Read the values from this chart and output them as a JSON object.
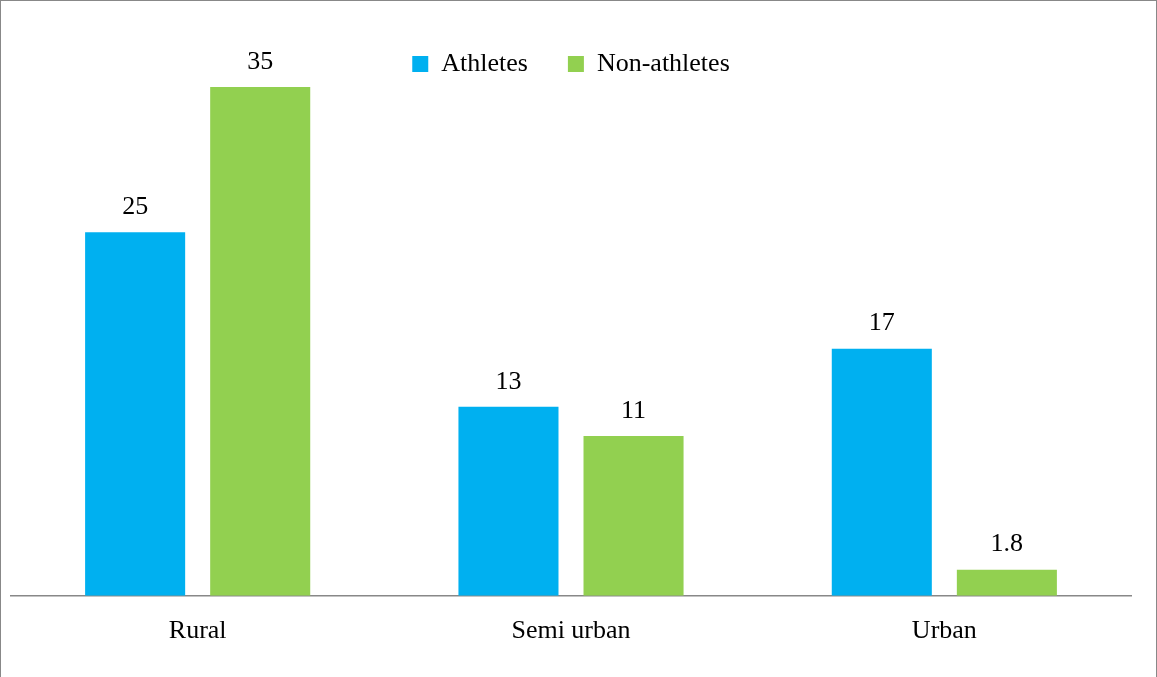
{
  "chart_data": {
    "type": "bar",
    "categories": [
      "Rural",
      "Semi urban",
      "Urban"
    ],
    "series": [
      {
        "name": "Athletes",
        "color": "#00b0f0",
        "values": [
          25,
          13,
          17
        ]
      },
      {
        "name": "Non-athletes",
        "color": "#92d050",
        "values": [
          35,
          11,
          1.8
        ]
      }
    ],
    "data_labels": true,
    "legend": "top",
    "grid": false
  }
}
